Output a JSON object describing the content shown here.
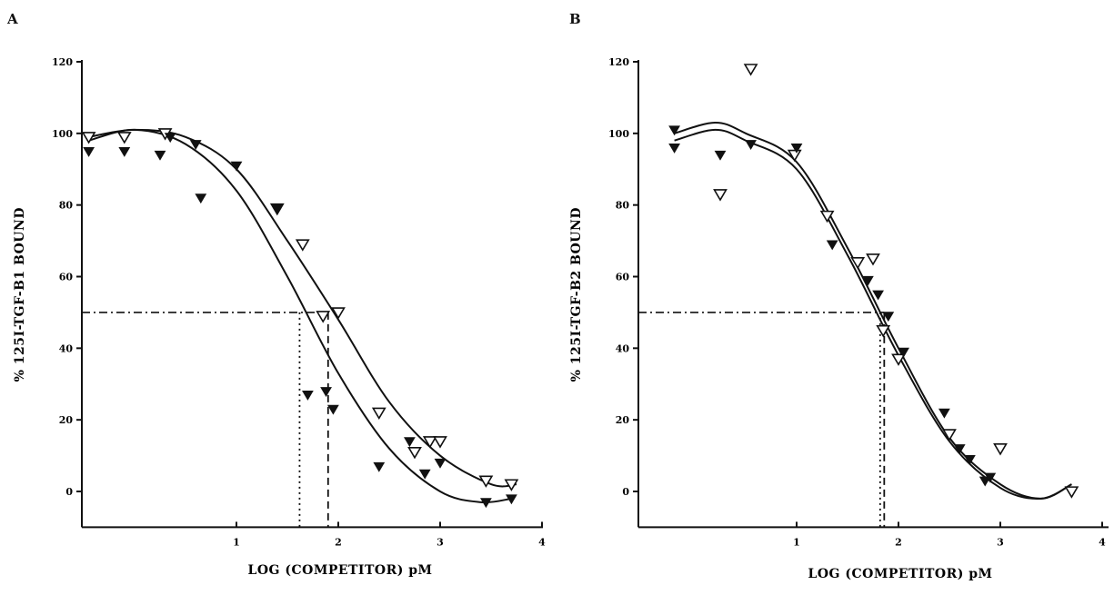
{
  "panels": [
    {
      "label": "A",
      "chart_data": {
        "type": "scatter",
        "xlabel": "LOG (COMPETITOR) pM",
        "ylabel": "% 125I-TGF-B1 BOUND",
        "xlim": [
          -0.5,
          4
        ],
        "ylim": [
          -10,
          120
        ],
        "xticks": [
          "1",
          "2",
          "3",
          "4"
        ],
        "yticks": [
          "0",
          "20",
          "40",
          "60",
          "80",
          "100",
          "120"
        ],
        "grid": false,
        "series": [
          {
            "marker": "open-triangle-down",
            "points": [
              [
                -0.45,
                99
              ],
              [
                -0.1,
                99
              ],
              [
                0.3,
                100
              ],
              [
                1.4,
                79
              ],
              [
                1.65,
                69
              ],
              [
                1.85,
                49
              ],
              [
                2.0,
                50
              ],
              [
                2.4,
                22
              ],
              [
                2.75,
                11
              ],
              [
                2.9,
                14
              ],
              [
                3.0,
                14
              ],
              [
                3.45,
                3
              ],
              [
                3.7,
                2
              ]
            ],
            "fit": [
              [
                -0.45,
                99
              ],
              [
                0.0,
                101
              ],
              [
                0.5,
                99
              ],
              [
                1.0,
                90
              ],
              [
                1.5,
                70
              ],
              [
                2.0,
                48
              ],
              [
                2.5,
                25
              ],
              [
                3.0,
                10
              ],
              [
                3.5,
                2
              ],
              [
                3.75,
                2
              ]
            ]
          },
          {
            "marker": "filled-triangle-down",
            "points": [
              [
                -0.45,
                95
              ],
              [
                -0.1,
                95
              ],
              [
                0.25,
                94
              ],
              [
                0.35,
                99
              ],
              [
                0.6,
                97
              ],
              [
                0.65,
                82
              ],
              [
                1.0,
                91
              ],
              [
                1.4,
                79
              ],
              [
                1.7,
                27
              ],
              [
                1.88,
                28
              ],
              [
                1.95,
                23
              ],
              [
                2.4,
                7
              ],
              [
                2.7,
                14
              ],
              [
                2.85,
                5
              ],
              [
                3.0,
                8
              ],
              [
                3.45,
                -3
              ],
              [
                3.7,
                -2
              ]
            ],
            "fit": [
              [
                -0.45,
                98
              ],
              [
                0.0,
                101
              ],
              [
                0.5,
                97
              ],
              [
                1.0,
                84
              ],
              [
                1.5,
                60
              ],
              [
                2.0,
                33
              ],
              [
                2.5,
                12
              ],
              [
                3.0,
                0
              ],
              [
                3.4,
                -3
              ],
              [
                3.7,
                -2
              ]
            ]
          }
        ],
        "reference_lines": {
          "y": 50,
          "x_dotted": 1.62,
          "x_dashed": 1.9
        }
      }
    },
    {
      "label": "B",
      "chart_data": {
        "type": "scatter",
        "xlabel": "LOG (COMPETITOR) pM",
        "ylabel": "% 125I-TGF-B2 BOUND",
        "xlim": [
          -0.5,
          4
        ],
        "ylim": [
          -10,
          120
        ],
        "xticks": [
          "1",
          "2",
          "3",
          "4"
        ],
        "yticks": [
          "0",
          "20",
          "40",
          "60",
          "80",
          "100",
          "120"
        ],
        "grid": false,
        "series": [
          {
            "marker": "open-triangle-down",
            "points": [
              [
                0.25,
                83
              ],
              [
                0.55,
                118
              ],
              [
                0.98,
                94
              ],
              [
                1.3,
                77
              ],
              [
                1.6,
                64
              ],
              [
                1.75,
                65
              ],
              [
                1.85,
                45
              ],
              [
                2.0,
                37
              ],
              [
                2.5,
                16
              ],
              [
                3.0,
                12
              ],
              [
                3.7,
                0
              ]
            ],
            "fit": [
              [
                -0.2,
                100
              ],
              [
                0.2,
                103
              ],
              [
                0.5,
                100
              ],
              [
                1.0,
                92
              ],
              [
                1.5,
                68
              ],
              [
                2.0,
                40
              ],
              [
                2.5,
                15
              ],
              [
                3.0,
                2
              ],
              [
                3.4,
                -2
              ],
              [
                3.7,
                2
              ]
            ]
          },
          {
            "marker": "filled-triangle-down",
            "points": [
              [
                -0.2,
                101
              ],
              [
                -0.2,
                96
              ],
              [
                0.25,
                94
              ],
              [
                0.55,
                97
              ],
              [
                1.0,
                96
              ],
              [
                1.35,
                69
              ],
              [
                1.7,
                59
              ],
              [
                1.8,
                55
              ],
              [
                1.9,
                49
              ],
              [
                2.05,
                39
              ],
              [
                2.45,
                22
              ],
              [
                2.6,
                12
              ],
              [
                2.7,
                9
              ],
              [
                2.85,
                3
              ],
              [
                2.9,
                4
              ]
            ],
            "fit": [
              [
                -0.2,
                98
              ],
              [
                0.2,
                101
              ],
              [
                0.5,
                98
              ],
              [
                1.0,
                90
              ],
              [
                1.5,
                66
              ],
              [
                2.0,
                38
              ],
              [
                2.5,
                14
              ],
              [
                3.0,
                1
              ],
              [
                3.4,
                -2
              ],
              [
                3.7,
                2
              ]
            ]
          }
        ],
        "reference_lines": {
          "y": 50,
          "x_dotted": 1.82,
          "x_dashed": 1.86
        }
      }
    }
  ]
}
